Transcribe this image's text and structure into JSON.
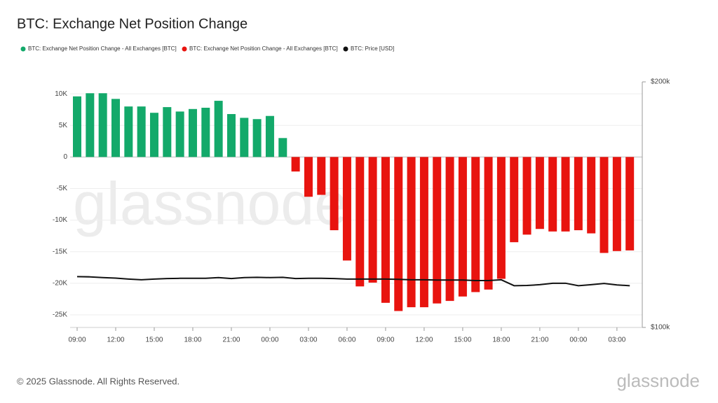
{
  "chart_data": {
    "type": "bar",
    "title": "BTC: Exchange Net Position Change",
    "categories": [
      "09:00",
      null,
      null,
      "12:00",
      null,
      null,
      "15:00",
      null,
      null,
      "18:00",
      null,
      null,
      "21:00",
      null,
      null,
      "00:00",
      null,
      null,
      "03:00",
      null,
      null,
      "06:00",
      null,
      null,
      "09:00",
      null,
      null,
      "12:00",
      null,
      null,
      "15:00",
      null,
      null,
      "18:00",
      null,
      null,
      "21:00",
      null,
      null,
      "00:00",
      null,
      null,
      "03:00",
      null
    ],
    "series": [
      {
        "name": "BTC: Exchange Net Position Change - All Exchanges [BTC]",
        "type": "bar",
        "color": "#13a96a",
        "values": [
          9600,
          10100,
          10100,
          9200,
          8000,
          8000,
          7000,
          7900,
          7200,
          7600,
          7800,
          8900,
          6800,
          6200,
          6000,
          6500,
          3000,
          null,
          null,
          null,
          null,
          null,
          null,
          null,
          null,
          null,
          null,
          null,
          null,
          null,
          null,
          null,
          null,
          null,
          null,
          null,
          null,
          null,
          null,
          null,
          null,
          null,
          null,
          null
        ]
      },
      {
        "name": "BTC: Exchange Net Position Change - All Exchanges [BTC]",
        "type": "bar",
        "color": "#e8140f",
        "values": [
          null,
          null,
          null,
          null,
          null,
          null,
          null,
          null,
          null,
          null,
          null,
          null,
          null,
          null,
          null,
          null,
          null,
          -2300,
          -6300,
          -6000,
          -11600,
          -16400,
          -20500,
          -19900,
          -23100,
          -24400,
          -23800,
          -23800,
          -23200,
          -22800,
          -22100,
          -21400,
          -21000,
          -19300,
          -13500,
          -12300,
          -11400,
          -11800,
          -11800,
          -11600,
          -12100,
          -15200,
          -14900,
          -14800
        ]
      },
      {
        "name": "BTC: Price [USD]",
        "type": "line",
        "color": "#111111",
        "axis": "y2",
        "values": [
          120700,
          120600,
          120300,
          120100,
          119700,
          119400,
          119700,
          119900,
          120000,
          120000,
          120000,
          120300,
          119900,
          120300,
          120400,
          120300,
          120400,
          119900,
          120000,
          120000,
          119900,
          119700,
          119700,
          119700,
          119700,
          119600,
          119400,
          119400,
          119300,
          119300,
          119300,
          119100,
          119100,
          119400,
          117000,
          117100,
          117400,
          118000,
          118000,
          117000,
          117400,
          117900,
          117300,
          117000
        ]
      }
    ],
    "ylim": [
      -27000,
      11900
    ],
    "yticks": [
      {
        "value": 10000,
        "label": "10K"
      },
      {
        "value": 5000,
        "label": "5K"
      },
      0,
      {
        "value": -5000,
        "label": "-5K"
      },
      {
        "value": -10000,
        "label": "-10K"
      },
      {
        "value": -15000,
        "label": "-15K"
      },
      {
        "value": -20000,
        "label": "-20K"
      },
      {
        "value": -25000,
        "label": "-25K"
      }
    ],
    "y2lim": [
      100000,
      200000
    ],
    "y2ticks": [
      {
        "value": 200000,
        "label": "$200k"
      },
      {
        "value": 100000,
        "label": "$100k"
      }
    ],
    "grid": true
  },
  "watermark": "glassnode",
  "footer": "© 2025 Glassnode. All Rights Reserved.",
  "brand": "glassnode"
}
